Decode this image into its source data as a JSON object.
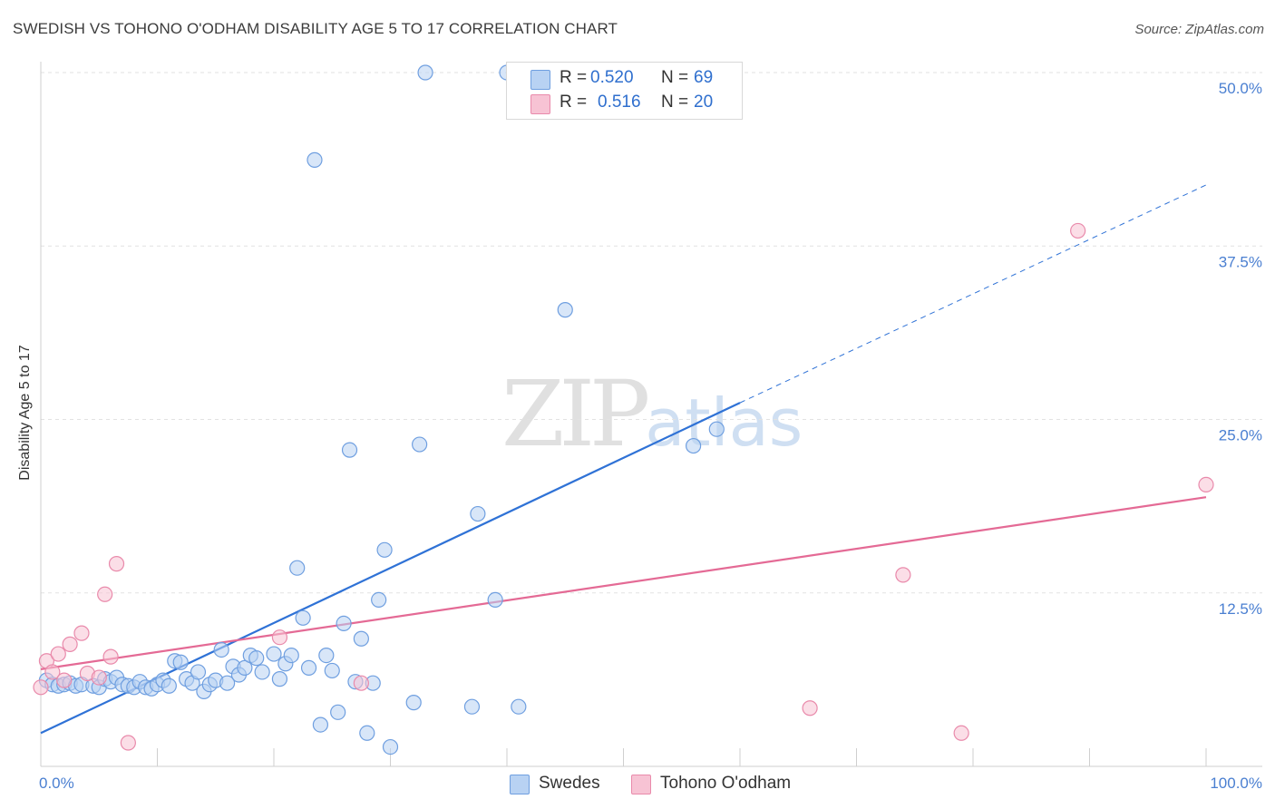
{
  "title": "SWEDISH VS TOHONO O'ODHAM DISABILITY AGE 5 TO 17 CORRELATION CHART",
  "source": "Source: ZipAtlas.com",
  "watermark": {
    "zip": "ZIP",
    "atlas": "atlas"
  },
  "colors": {
    "swedes": "#2f72d6",
    "tohono": "#e46a95",
    "swedes_fill": "#b8d2f3",
    "tohono_fill": "#f7c3d4"
  },
  "legend": {
    "r_label": "R =",
    "n_label": "N =",
    "rows": [
      {
        "r": "0.520",
        "n": "69"
      },
      {
        "r": "0.516",
        "n": "20"
      }
    ]
  },
  "bottom_legend": [
    "Swedes",
    "Tohono O'odham"
  ],
  "chart_data": {
    "type": "scatter",
    "title": "SWEDISH VS TOHONO O'ODHAM DISABILITY AGE 5 TO 17 CORRELATION CHART",
    "xlabel": "",
    "ylabel": "Disability Age 5 to 17",
    "xlim": [
      0,
      100
    ],
    "ylim": [
      0,
      50
    ],
    "x_ticks": [
      "0.0%",
      "100.0%"
    ],
    "y_ticks": [
      {
        "value": 12.5,
        "label": "12.5%"
      },
      {
        "value": 25.0,
        "label": "25.0%"
      },
      {
        "value": 37.5,
        "label": "37.5%"
      },
      {
        "value": 50.0,
        "label": "50.0%"
      }
    ],
    "series": [
      {
        "name": "Swedes",
        "r": 0.52,
        "n": 69,
        "trend": {
          "x0": 0,
          "y0": 2.4,
          "x1": 60,
          "y1": 26.2,
          "x_dash_end": 100,
          "y_dash_end": 41.9
        },
        "points": [
          [
            0.5,
            6.2
          ],
          [
            1.0,
            5.9
          ],
          [
            1.5,
            5.8
          ],
          [
            2.0,
            5.9
          ],
          [
            2.5,
            6.0
          ],
          [
            3.0,
            5.8
          ],
          [
            3.5,
            5.9
          ],
          [
            4.5,
            5.8
          ],
          [
            5.0,
            5.7
          ],
          [
            5.5,
            6.3
          ],
          [
            6.0,
            6.1
          ],
          [
            6.5,
            6.4
          ],
          [
            7.0,
            5.9
          ],
          [
            7.5,
            5.8
          ],
          [
            8.0,
            5.7
          ],
          [
            8.5,
            6.1
          ],
          [
            9.0,
            5.7
          ],
          [
            9.5,
            5.6
          ],
          [
            10.0,
            5.9
          ],
          [
            10.5,
            6.2
          ],
          [
            11.0,
            5.8
          ],
          [
            11.5,
            7.6
          ],
          [
            12.0,
            7.5
          ],
          [
            12.5,
            6.3
          ],
          [
            13.0,
            6.0
          ],
          [
            13.5,
            6.8
          ],
          [
            14.0,
            5.4
          ],
          [
            14.5,
            5.9
          ],
          [
            15.0,
            6.2
          ],
          [
            15.5,
            8.4
          ],
          [
            16.0,
            6.0
          ],
          [
            16.5,
            7.2
          ],
          [
            17.0,
            6.6
          ],
          [
            17.5,
            7.1
          ],
          [
            18.0,
            8.0
          ],
          [
            18.5,
            7.8
          ],
          [
            19.0,
            6.8
          ],
          [
            20.0,
            8.1
          ],
          [
            20.5,
            6.3
          ],
          [
            21.0,
            7.4
          ],
          [
            21.5,
            8.0
          ],
          [
            22.0,
            14.3
          ],
          [
            22.5,
            10.7
          ],
          [
            23.0,
            7.1
          ],
          [
            23.5,
            43.7
          ],
          [
            24.0,
            3.0
          ],
          [
            24.5,
            8.0
          ],
          [
            25.0,
            6.9
          ],
          [
            25.5,
            3.9
          ],
          [
            26.0,
            10.3
          ],
          [
            26.5,
            22.8
          ],
          [
            27.0,
            6.1
          ],
          [
            27.5,
            9.2
          ],
          [
            28.0,
            2.4
          ],
          [
            28.5,
            6.0
          ],
          [
            29.0,
            12.0
          ],
          [
            29.5,
            15.6
          ],
          [
            30.0,
            1.4
          ],
          [
            32.0,
            4.6
          ],
          [
            32.5,
            23.2
          ],
          [
            33.0,
            50.0
          ],
          [
            37.0,
            4.3
          ],
          [
            37.5,
            18.2
          ],
          [
            39.0,
            12.0
          ],
          [
            41.0,
            4.3
          ],
          [
            40.0,
            50.0
          ],
          [
            45.0,
            32.9
          ],
          [
            56.0,
            23.1
          ],
          [
            58.0,
            24.3
          ]
        ]
      },
      {
        "name": "Tohono O'odham",
        "r": 0.516,
        "n": 20,
        "trend": {
          "x0": 0,
          "y0": 7.0,
          "x1": 100,
          "y1": 19.4
        },
        "points": [
          [
            0.0,
            5.7
          ],
          [
            0.5,
            7.6
          ],
          [
            1.0,
            6.8
          ],
          [
            1.5,
            8.1
          ],
          [
            2.0,
            6.2
          ],
          [
            2.5,
            8.8
          ],
          [
            3.5,
            9.6
          ],
          [
            4.0,
            6.7
          ],
          [
            5.0,
            6.4
          ],
          [
            5.5,
            12.4
          ],
          [
            6.0,
            7.9
          ],
          [
            6.5,
            14.6
          ],
          [
            7.5,
            1.7
          ],
          [
            20.5,
            9.3
          ],
          [
            27.5,
            6.0
          ],
          [
            66.0,
            4.2
          ],
          [
            74.0,
            13.8
          ],
          [
            79.0,
            2.4
          ],
          [
            89.0,
            38.6
          ],
          [
            100.0,
            20.3
          ]
        ]
      }
    ]
  }
}
